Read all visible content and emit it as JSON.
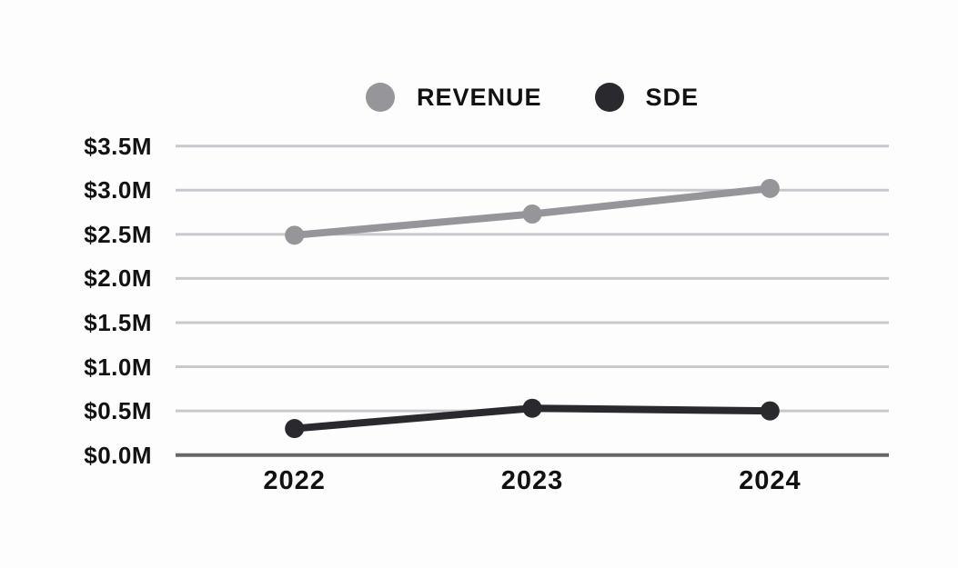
{
  "page": {
    "background_color": "#fdfdfd",
    "text_color": "#121215"
  },
  "legend": {
    "position": "top-center",
    "items": [
      {
        "label": "Revenue",
        "color": "#96969a"
      },
      {
        "label": "SDE",
        "color": "#2a2a2e"
      }
    ]
  },
  "chart_data": {
    "type": "line",
    "title": "",
    "xlabel": "",
    "ylabel": "",
    "categories": [
      "2022",
      "2023",
      "2024"
    ],
    "series": [
      {
        "name": "Revenue",
        "color": "#96969a",
        "values": [
          2.49,
          2.73,
          3.02
        ]
      },
      {
        "name": "SDE",
        "color": "#2a2a2e",
        "values": [
          0.3,
          0.53,
          0.5
        ]
      }
    ],
    "ylim": [
      0,
      3.5
    ],
    "y_ticks": [
      0.0,
      0.5,
      1.0,
      1.5,
      2.0,
      2.5,
      3.0,
      3.5
    ],
    "y_tick_labels": [
      "$0.0M",
      "$0.5M",
      "$1.0M",
      "$1.5M",
      "$2.0M",
      "$2.5M",
      "$3.0M",
      "$3.5M"
    ],
    "grid": true,
    "gridline_color": "#c9c9cd",
    "baseline_color": "#67676b",
    "legend_position": "top",
    "marker": "circle"
  }
}
